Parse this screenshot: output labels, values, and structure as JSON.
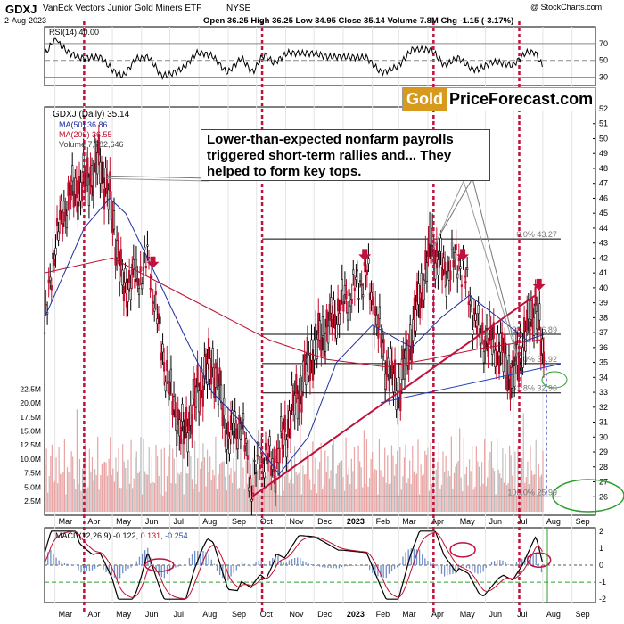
{
  "header": {
    "symbol": "GDXJ",
    "name": "VanEck Vectors Junior Gold Miners ETF",
    "exchange": "NYSE",
    "date": "2-Aug-2023",
    "ohlc": "Open 36.25  High 36.25  Low 34.95  Close 35.14  Volume 7.8M  Chg -1.15 (-3.17%)",
    "copyright": "@ StockCharts.com"
  },
  "badge": {
    "gold": "Gold",
    "rest": "PriceForecast.com"
  },
  "callout": "Lower-than-expected nonfarm payrolls triggered short-term rallies and... They helped to form key tops.",
  "colors": {
    "ma50": "#1f2fa0",
    "ma200": "#c01030",
    "annotation": "#c0103c",
    "green": "#2e9e2e",
    "volume": "#e8a3a3"
  },
  "rsi": {
    "label": "RSI(14) 40.00",
    "levels": [
      30,
      50,
      70
    ],
    "ticks": [
      30,
      50,
      70
    ]
  },
  "macd": {
    "label": "MACD(12,26,9)",
    "macd": "-0.122",
    "signal": "0.131",
    "hist": "-0.254",
    "ticks": [
      2,
      1,
      0,
      -1,
      -2
    ]
  },
  "price_legend": {
    "main": "GDXJ (Daily) 35.14",
    "ma50": "MA(50) 36.86",
    "ma200": "MA(200) 36.55",
    "volume": "Volume 7,782,646"
  },
  "fib_levels": [
    {
      "label": "0.0% 43.27",
      "value": 43.27
    },
    {
      "label": "38.2% 36.89",
      "value": 36.89
    },
    {
      "label": "50.0% 34.92",
      "value": 34.92
    },
    {
      "label": "61.8% 32.96",
      "value": 32.96
    },
    {
      "label": "100.0% 25.99",
      "value": 25.99
    }
  ],
  "chart_data": {
    "type": "candlestick",
    "x_labels": [
      "Mar",
      "Apr",
      "May",
      "Jun",
      "Jul",
      "Aug",
      "Sep",
      "Oct",
      "Nov",
      "Dec",
      "2023",
      "Feb",
      "Mar",
      "Apr",
      "May",
      "Jun",
      "Jul",
      "Aug",
      "Sep"
    ],
    "y_ticks": [
      26,
      27,
      28,
      29,
      30,
      31,
      32,
      33,
      34,
      35,
      36,
      37,
      38,
      39,
      40,
      41,
      42,
      43,
      44,
      45,
      46,
      47,
      48,
      49,
      50,
      51,
      52
    ],
    "y_range": [
      25,
      52
    ],
    "volume_ticks": [
      "2.5M",
      "5.0M",
      "7.5M",
      "10.0M",
      "12.5M",
      "15.0M",
      "17.5M",
      "20.0M",
      "22.5M"
    ],
    "price_path": [
      [
        "2022-02-18",
        37
      ],
      [
        "2022-03-01",
        43
      ],
      [
        "2022-03-15",
        46
      ],
      [
        "2022-04-01",
        47
      ],
      [
        "2022-04-18",
        48.5
      ],
      [
        "2022-05-01",
        45
      ],
      [
        "2022-05-12",
        40
      ],
      [
        "2022-06-01",
        41
      ],
      [
        "2022-06-08",
        42
      ],
      [
        "2022-06-20",
        37
      ],
      [
        "2022-07-01",
        33
      ],
      [
        "2022-07-15",
        30
      ],
      [
        "2022-08-05",
        34
      ],
      [
        "2022-08-16",
        35
      ],
      [
        "2022-09-01",
        30
      ],
      [
        "2022-09-15",
        31
      ],
      [
        "2022-09-26",
        26.5
      ],
      [
        "2022-10-05",
        29
      ],
      [
        "2022-10-20",
        28
      ],
      [
        "2022-11-04",
        31
      ],
      [
        "2022-11-15",
        33
      ],
      [
        "2022-12-01",
        36
      ],
      [
        "2023-01-01",
        39
      ],
      [
        "2023-01-26",
        41
      ],
      [
        "2023-02-15",
        35
      ],
      [
        "2023-03-01",
        33
      ],
      [
        "2023-03-15",
        37
      ],
      [
        "2023-04-05",
        43
      ],
      [
        "2023-04-18",
        41
      ],
      [
        "2023-05-04",
        42
      ],
      [
        "2023-05-25",
        37
      ],
      [
        "2023-06-15",
        36
      ],
      [
        "2023-06-30",
        34
      ],
      [
        "2023-07-10",
        36
      ],
      [
        "2023-07-24",
        39
      ],
      [
        "2023-08-02",
        35
      ]
    ],
    "ma50_path": [
      [
        "2022-02-18",
        38
      ],
      [
        "2022-04-01",
        44
      ],
      [
        "2022-04-28",
        46
      ],
      [
        "2022-05-15",
        45
      ],
      [
        "2022-06-15",
        41
      ],
      [
        "2022-07-15",
        37
      ],
      [
        "2022-08-15",
        33
      ],
      [
        "2022-09-15",
        31
      ],
      [
        "2022-10-25",
        27.5
      ],
      [
        "2022-11-25",
        30
      ],
      [
        "2022-12-25",
        35
      ],
      [
        "2023-02-01",
        37.5
      ],
      [
        "2023-03-15",
        36
      ],
      [
        "2023-04-15",
        38
      ],
      [
        "2023-05-15",
        39.5
      ],
      [
        "2023-06-15",
        38
      ],
      [
        "2023-07-15",
        36.5
      ],
      [
        "2023-08-02",
        36.86
      ]
    ],
    "ma200_path": [
      [
        "2022-02-18",
        41
      ],
      [
        "2022-05-01",
        42
      ],
      [
        "2022-06-15",
        40.5
      ],
      [
        "2022-08-15",
        38.5
      ],
      [
        "2022-10-15",
        36.5
      ],
      [
        "2022-12-15",
        35.2
      ],
      [
        "2023-02-15",
        34.7
      ],
      [
        "2023-04-01",
        35.2
      ],
      [
        "2023-06-01",
        36
      ],
      [
        "2023-08-02",
        36.55
      ]
    ],
    "trendlines": [
      {
        "from": [
          "2022-09-26",
          26
        ],
        "to": [
          "2023-07-24",
          39.5
        ]
      },
      {
        "from": [
          "2023-02-10",
          32.3
        ],
        "to": [
          "2023-08-20",
          34.9
        ]
      }
    ],
    "vertical_markers": [
      "2022-04-01",
      "2022-10-07",
      "2023-04-07",
      "2023-07-07"
    ],
    "arrows": [
      [
        "2022-06-13",
        41.5
      ],
      [
        "2023-01-24",
        42
      ],
      [
        "2023-05-08",
        42
      ],
      [
        "2023-07-28",
        40
      ]
    ]
  }
}
